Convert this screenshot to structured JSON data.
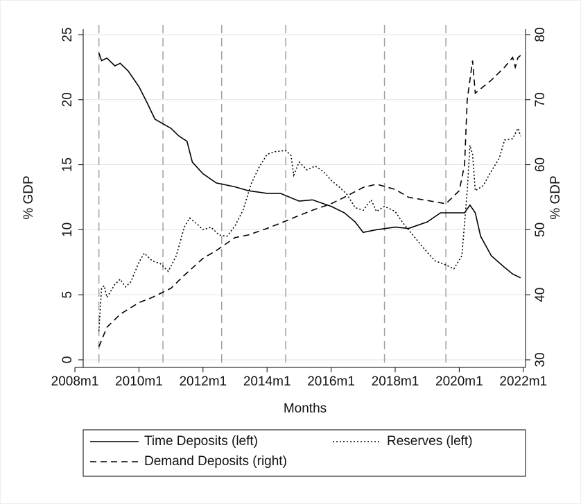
{
  "chart_data": {
    "type": "line",
    "xlabel": "Months",
    "ylabel": "% GDP",
    "y2label": "% GDP",
    "xlim": [
      2008,
      2022.07
    ],
    "xticks": [
      {
        "value": 2008,
        "label": "2008m1"
      },
      {
        "value": 2010,
        "label": "2010m1"
      },
      {
        "value": 2012,
        "label": "2012m1"
      },
      {
        "value": 2014,
        "label": "2014m1"
      },
      {
        "value": 2016,
        "label": "2016m1"
      },
      {
        "value": 2018,
        "label": "2018m1"
      },
      {
        "value": 2020,
        "label": "2020m1"
      },
      {
        "value": 2022,
        "label": "2022m1"
      }
    ],
    "ylim": [
      0,
      25
    ],
    "yticks": [
      0,
      5,
      10,
      15,
      20,
      25
    ],
    "y2lim": [
      30,
      80
    ],
    "y2ticks": [
      30,
      40,
      50,
      60,
      70,
      80
    ],
    "grid": true,
    "xlines": [
      "2008m10",
      "2010m10",
      "2012m8",
      "2014m8",
      "2017m9",
      "2019m8"
    ],
    "series": [
      {
        "name": "Time Deposits (left)",
        "color": "#000000",
        "style": "solid",
        "x": [
          "2008m10",
          "2008m11",
          "2009m1",
          "2009m4",
          "2009m6",
          "2009m9",
          "2010m1",
          "2010m4",
          "2010m7",
          "2011m1",
          "2011m4",
          "2011m7",
          "2011m9",
          "2012m1",
          "2012m6",
          "2013m1",
          "2013m6",
          "2014m1",
          "2014m6",
          "2015m1",
          "2015m6",
          "2016m1",
          "2016m6",
          "2016m10",
          "2017m1",
          "2017m6",
          "2018m1",
          "2018m6",
          "2019m1",
          "2019m6",
          "2020m1",
          "2020m3",
          "2020m5",
          "2020m7",
          "2020m9",
          "2021m1",
          "2021m6",
          "2021m9",
          "2021m12"
        ],
        "values": [
          23.6,
          23.0,
          23.2,
          22.6,
          22.8,
          22.2,
          21.0,
          19.8,
          18.5,
          17.8,
          17.2,
          16.8,
          15.2,
          14.3,
          13.6,
          13.3,
          13.0,
          12.8,
          12.8,
          12.2,
          12.3,
          11.8,
          11.3,
          10.6,
          9.8,
          10.0,
          10.2,
          10.1,
          10.6,
          11.3,
          11.3,
          11.3,
          11.9,
          11.3,
          9.5,
          8.0,
          7.1,
          6.6,
          6.3
        ]
      },
      {
        "name": "Reserves (left)",
        "color": "#000000",
        "style": "dotted",
        "x": [
          "2008m10",
          "2008m11",
          "2008m12",
          "2009m1",
          "2009m4",
          "2009m6",
          "2009m8",
          "2009m10",
          "2010m1",
          "2010m3",
          "2010m6",
          "2010m9",
          "2010m12",
          "2011m3",
          "2011m6",
          "2011m8",
          "2011m11",
          "2012m1",
          "2012m4",
          "2012m7",
          "2012m10",
          "2013m1",
          "2013m4",
          "2013m7",
          "2013m10",
          "2014m1",
          "2014m4",
          "2014m8",
          "2014m10",
          "2014m11",
          "2015m1",
          "2015m4",
          "2015m7",
          "2015m10",
          "2016m1",
          "2016m4",
          "2016m7",
          "2016m10",
          "2017m1",
          "2017m4",
          "2017m6",
          "2017m9",
          "2018m1",
          "2018m4",
          "2018m8",
          "2018m12",
          "2019m4",
          "2019m8",
          "2019m11",
          "2020m2",
          "2020m4",
          "2020m5",
          "2020m6",
          "2020m7",
          "2020m10",
          "2021m1",
          "2021m4",
          "2021m6",
          "2021m9",
          "2021m11",
          "2021m12"
        ],
        "values": [
          2.2,
          5.5,
          5.7,
          4.8,
          5.8,
          6.2,
          5.6,
          6.0,
          7.5,
          8.2,
          7.6,
          7.4,
          6.8,
          8.0,
          10.2,
          10.9,
          10.4,
          10.0,
          10.2,
          9.6,
          9.5,
          10.3,
          11.5,
          13.5,
          14.8,
          15.8,
          16.0,
          16.1,
          15.7,
          14.2,
          15.2,
          14.6,
          14.9,
          14.5,
          13.8,
          13.3,
          12.7,
          11.7,
          11.5,
          12.3,
          11.4,
          11.8,
          11.4,
          10.5,
          9.5,
          8.5,
          7.6,
          7.3,
          7.0,
          8.0,
          13.0,
          16.5,
          15.8,
          13.0,
          13.4,
          14.5,
          15.5,
          16.9,
          17.0,
          17.8,
          17.2
        ]
      },
      {
        "name": "Demand Deposits (right)",
        "color": "#000000",
        "style": "dashed",
        "axis": "y2",
        "x": [
          "2008m10",
          "2009m1",
          "2009m6",
          "2010m1",
          "2010m6",
          "2011m1",
          "2011m6",
          "2012m1",
          "2012m6",
          "2013m1",
          "2013m6",
          "2014m1",
          "2014m6",
          "2015m1",
          "2015m6",
          "2016m1",
          "2016m6",
          "2017m1",
          "2017m6",
          "2018m1",
          "2018m6",
          "2019m1",
          "2019m8",
          "2020m1",
          "2020m3",
          "2020m4",
          "2020m5",
          "2020m6",
          "2020m7",
          "2021m1",
          "2021m6",
          "2021m9",
          "2021m10",
          "2021m11",
          "2021m12"
        ],
        "values": [
          32.0,
          35.0,
          37.0,
          38.8,
          39.6,
          41.0,
          43.0,
          45.6,
          46.8,
          48.8,
          49.2,
          50.2,
          51.0,
          52.2,
          53.0,
          54.0,
          55.0,
          56.5,
          57.0,
          56.2,
          55.0,
          54.5,
          54.0,
          56.0,
          60.0,
          70.0,
          73.0,
          76.0,
          71.0,
          73.0,
          75.0,
          76.5,
          75.0,
          76.5,
          76.8
        ]
      }
    ]
  }
}
